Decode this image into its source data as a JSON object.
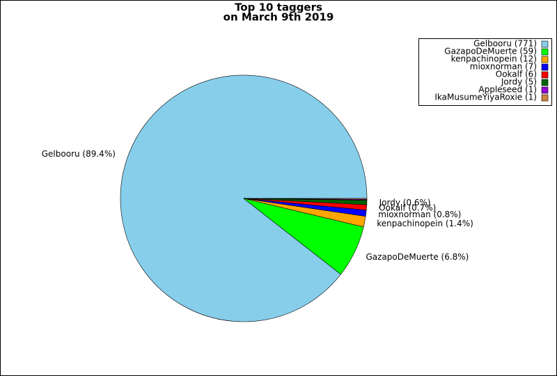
{
  "chart_data": {
    "type": "pie",
    "title": [
      "Top 10 taggers",
      "on March 9th 2019"
    ],
    "categories": [
      "Gelbooru",
      "GazapoDeMuerte",
      "kenpachinopein",
      "mioxnorman",
      "Ookalf",
      "Jordy",
      "Appleseed",
      "IkaMusumeYiyaRoxie"
    ],
    "values": [
      771,
      59,
      12,
      7,
      6,
      5,
      1,
      1
    ],
    "colors": [
      "#87ceeb",
      "#00ff00",
      "#ffa500",
      "#0000ff",
      "#ff0000",
      "#006400",
      "#9400d3",
      "#cd853f"
    ],
    "legend_labels": [
      "Gelbooru (771)",
      "GazapoDeMuerte (59)",
      "kenpachinopein (12)",
      "mioxnorman (7)",
      "Ookalf (6)",
      "Jordy (5)",
      "Appleseed (1)",
      "IkaMusumeYiyaRoxie (1)"
    ],
    "slice_labels": [
      "Gelbooru (89.4%)",
      "GazapoDeMuerte (6.8%)",
      "kenpachinopein (1.4%)",
      "mioxnorman (0.8%)",
      "Ookalf (0.7%)",
      "Jordy (0.6%)",
      null,
      null
    ],
    "legend": "upper right"
  }
}
